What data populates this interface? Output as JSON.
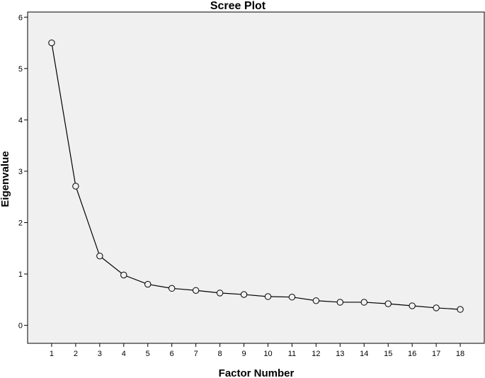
{
  "chart_data": {
    "type": "line",
    "title": "Scree Plot",
    "xlabel": "Factor Number",
    "ylabel": "Eigenvalue",
    "x": [
      1,
      2,
      3,
      4,
      5,
      6,
      7,
      8,
      9,
      10,
      11,
      12,
      13,
      14,
      15,
      16,
      17,
      18
    ],
    "series": [
      {
        "values": [
          5.5,
          2.71,
          1.35,
          0.98,
          0.8,
          0.72,
          0.68,
          0.63,
          0.6,
          0.56,
          0.55,
          0.48,
          0.45,
          0.45,
          0.42,
          0.38,
          0.34,
          0.31
        ]
      }
    ],
    "xlim": [
      0,
      19
    ],
    "ylim": [
      -0.35,
      6.1
    ],
    "yticks": [
      0,
      1,
      2,
      3,
      4,
      5,
      6
    ],
    "xticks": [
      1,
      2,
      3,
      4,
      5,
      6,
      7,
      8,
      9,
      10,
      11,
      12,
      13,
      14,
      15,
      16,
      17,
      18
    ],
    "grid": false,
    "legend": "none",
    "colors": {
      "plot_background": "#f0f0f0",
      "line": "#000000",
      "marker_fill": "#f0f0f0"
    },
    "marker": "circle"
  }
}
